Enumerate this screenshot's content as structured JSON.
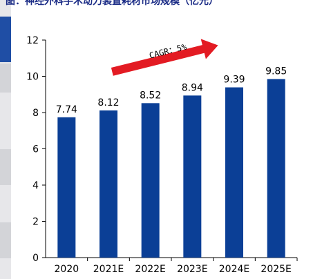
{
  "title": "图：神经外科手术动力装置耗材市场规模（亿元）",
  "chart_data": {
    "type": "bar",
    "categories": [
      "2020",
      "2021E",
      "2022E",
      "2023E",
      "2024E",
      "2025E"
    ],
    "values": [
      7.74,
      8.12,
      8.52,
      8.94,
      9.39,
      9.85
    ],
    "data_labels": [
      "7.74",
      "8.12",
      "8.52",
      "8.94",
      "9.39",
      "9.85"
    ],
    "ylim": [
      0,
      12
    ],
    "yticks": [
      0,
      2,
      4,
      6,
      8,
      10,
      12
    ],
    "grid": false,
    "legend": "none",
    "bar_color": "#0b3f96",
    "annotation": "CAGR：5%",
    "annotation_arrow_color": "#e31b23"
  },
  "colors": {
    "accent": "#0b3f96",
    "arrow": "#e31b23"
  }
}
